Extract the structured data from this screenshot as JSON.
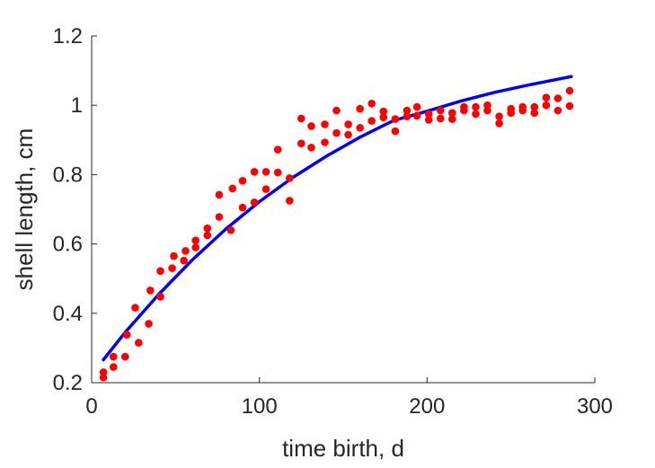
{
  "chart_data": {
    "type": "scatter",
    "title": "",
    "xlabel": "time birth, d",
    "ylabel": "shell length, cm",
    "xlim": [
      0,
      300
    ],
    "ylim": [
      0.2,
      1.2
    ],
    "xticks": [
      0,
      100,
      200,
      300
    ],
    "yticks": [
      0.2,
      0.4,
      0.6,
      0.8,
      1.0,
      1.2
    ],
    "xtick_labels": [
      "0",
      "100",
      "200",
      "300"
    ],
    "ytick_labels": [
      "0.2",
      "0.4",
      "0.6",
      "0.8",
      "1",
      "1.2"
    ],
    "grid": false,
    "legend": "none",
    "series": [
      {
        "kind": "scatter",
        "color": "#ff0000",
        "points": [
          [
            7,
            0.215
          ],
          [
            7,
            0.23
          ],
          [
            13,
            0.245
          ],
          [
            13,
            0.275
          ],
          [
            20,
            0.275
          ],
          [
            21,
            0.338
          ],
          [
            26,
            0.416
          ],
          [
            28,
            0.315
          ],
          [
            34,
            0.37
          ],
          [
            35,
            0.466
          ],
          [
            41,
            0.448
          ],
          [
            41,
            0.522
          ],
          [
            48,
            0.53
          ],
          [
            49,
            0.565
          ],
          [
            55,
            0.552
          ],
          [
            56,
            0.58
          ],
          [
            62,
            0.59
          ],
          [
            62,
            0.61
          ],
          [
            69,
            0.625
          ],
          [
            69,
            0.645
          ],
          [
            76,
            0.678
          ],
          [
            76,
            0.742
          ],
          [
            83,
            0.64
          ],
          [
            84,
            0.76
          ],
          [
            90,
            0.705
          ],
          [
            90,
            0.782
          ],
          [
            97,
            0.72
          ],
          [
            97,
            0.808
          ],
          [
            104,
            0.758
          ],
          [
            104,
            0.808
          ],
          [
            111,
            0.806
          ],
          [
            111,
            0.872
          ],
          [
            118,
            0.725
          ],
          [
            118,
            0.79
          ],
          [
            125,
            0.89
          ],
          [
            125,
            0.962
          ],
          [
            131,
            0.878
          ],
          [
            131,
            0.94
          ],
          [
            139,
            0.893
          ],
          [
            139,
            0.945
          ],
          [
            146,
            0.92
          ],
          [
            146,
            0.985
          ],
          [
            153,
            0.915
          ],
          [
            153,
            0.945
          ],
          [
            160,
            0.935
          ],
          [
            160,
            0.99
          ],
          [
            167,
            0.955
          ],
          [
            167,
            1.005
          ],
          [
            174,
            0.965
          ],
          [
            174,
            0.982
          ],
          [
            181,
            0.925
          ],
          [
            181,
            0.96
          ],
          [
            188,
            0.968
          ],
          [
            188,
            0.985
          ],
          [
            194,
            0.97
          ],
          [
            194,
            0.995
          ],
          [
            201,
            0.958
          ],
          [
            201,
            0.975
          ],
          [
            208,
            0.962
          ],
          [
            208,
            0.985
          ],
          [
            215,
            0.96
          ],
          [
            215,
            0.978
          ],
          [
            222,
            0.985
          ],
          [
            222,
            0.995
          ],
          [
            229,
            0.975
          ],
          [
            229,
            0.995
          ],
          [
            236,
            0.985
          ],
          [
            236,
            1.0
          ],
          [
            243,
            0.948
          ],
          [
            243,
            0.968
          ],
          [
            250,
            0.978
          ],
          [
            250,
            0.99
          ],
          [
            257,
            0.985
          ],
          [
            257,
            0.995
          ],
          [
            264,
            0.978
          ],
          [
            264,
            0.995
          ],
          [
            271,
            1.0
          ],
          [
            271,
            1.022
          ],
          [
            278,
            0.985
          ],
          [
            278,
            1.02
          ],
          [
            285,
            0.998
          ],
          [
            285,
            1.042
          ]
        ]
      },
      {
        "kind": "line",
        "color": "#0000ff",
        "points": [
          [
            7,
            0.266
          ],
          [
            20,
            0.345
          ],
          [
            40,
            0.455
          ],
          [
            60,
            0.554
          ],
          [
            80,
            0.643
          ],
          [
            100,
            0.722
          ],
          [
            120,
            0.792
          ],
          [
            140,
            0.853
          ],
          [
            160,
            0.908
          ],
          [
            180,
            0.956
          ],
          [
            200,
            0.983
          ],
          [
            220,
            1.012
          ],
          [
            240,
            1.037
          ],
          [
            260,
            1.058
          ],
          [
            286,
            1.083
          ]
        ]
      }
    ]
  }
}
